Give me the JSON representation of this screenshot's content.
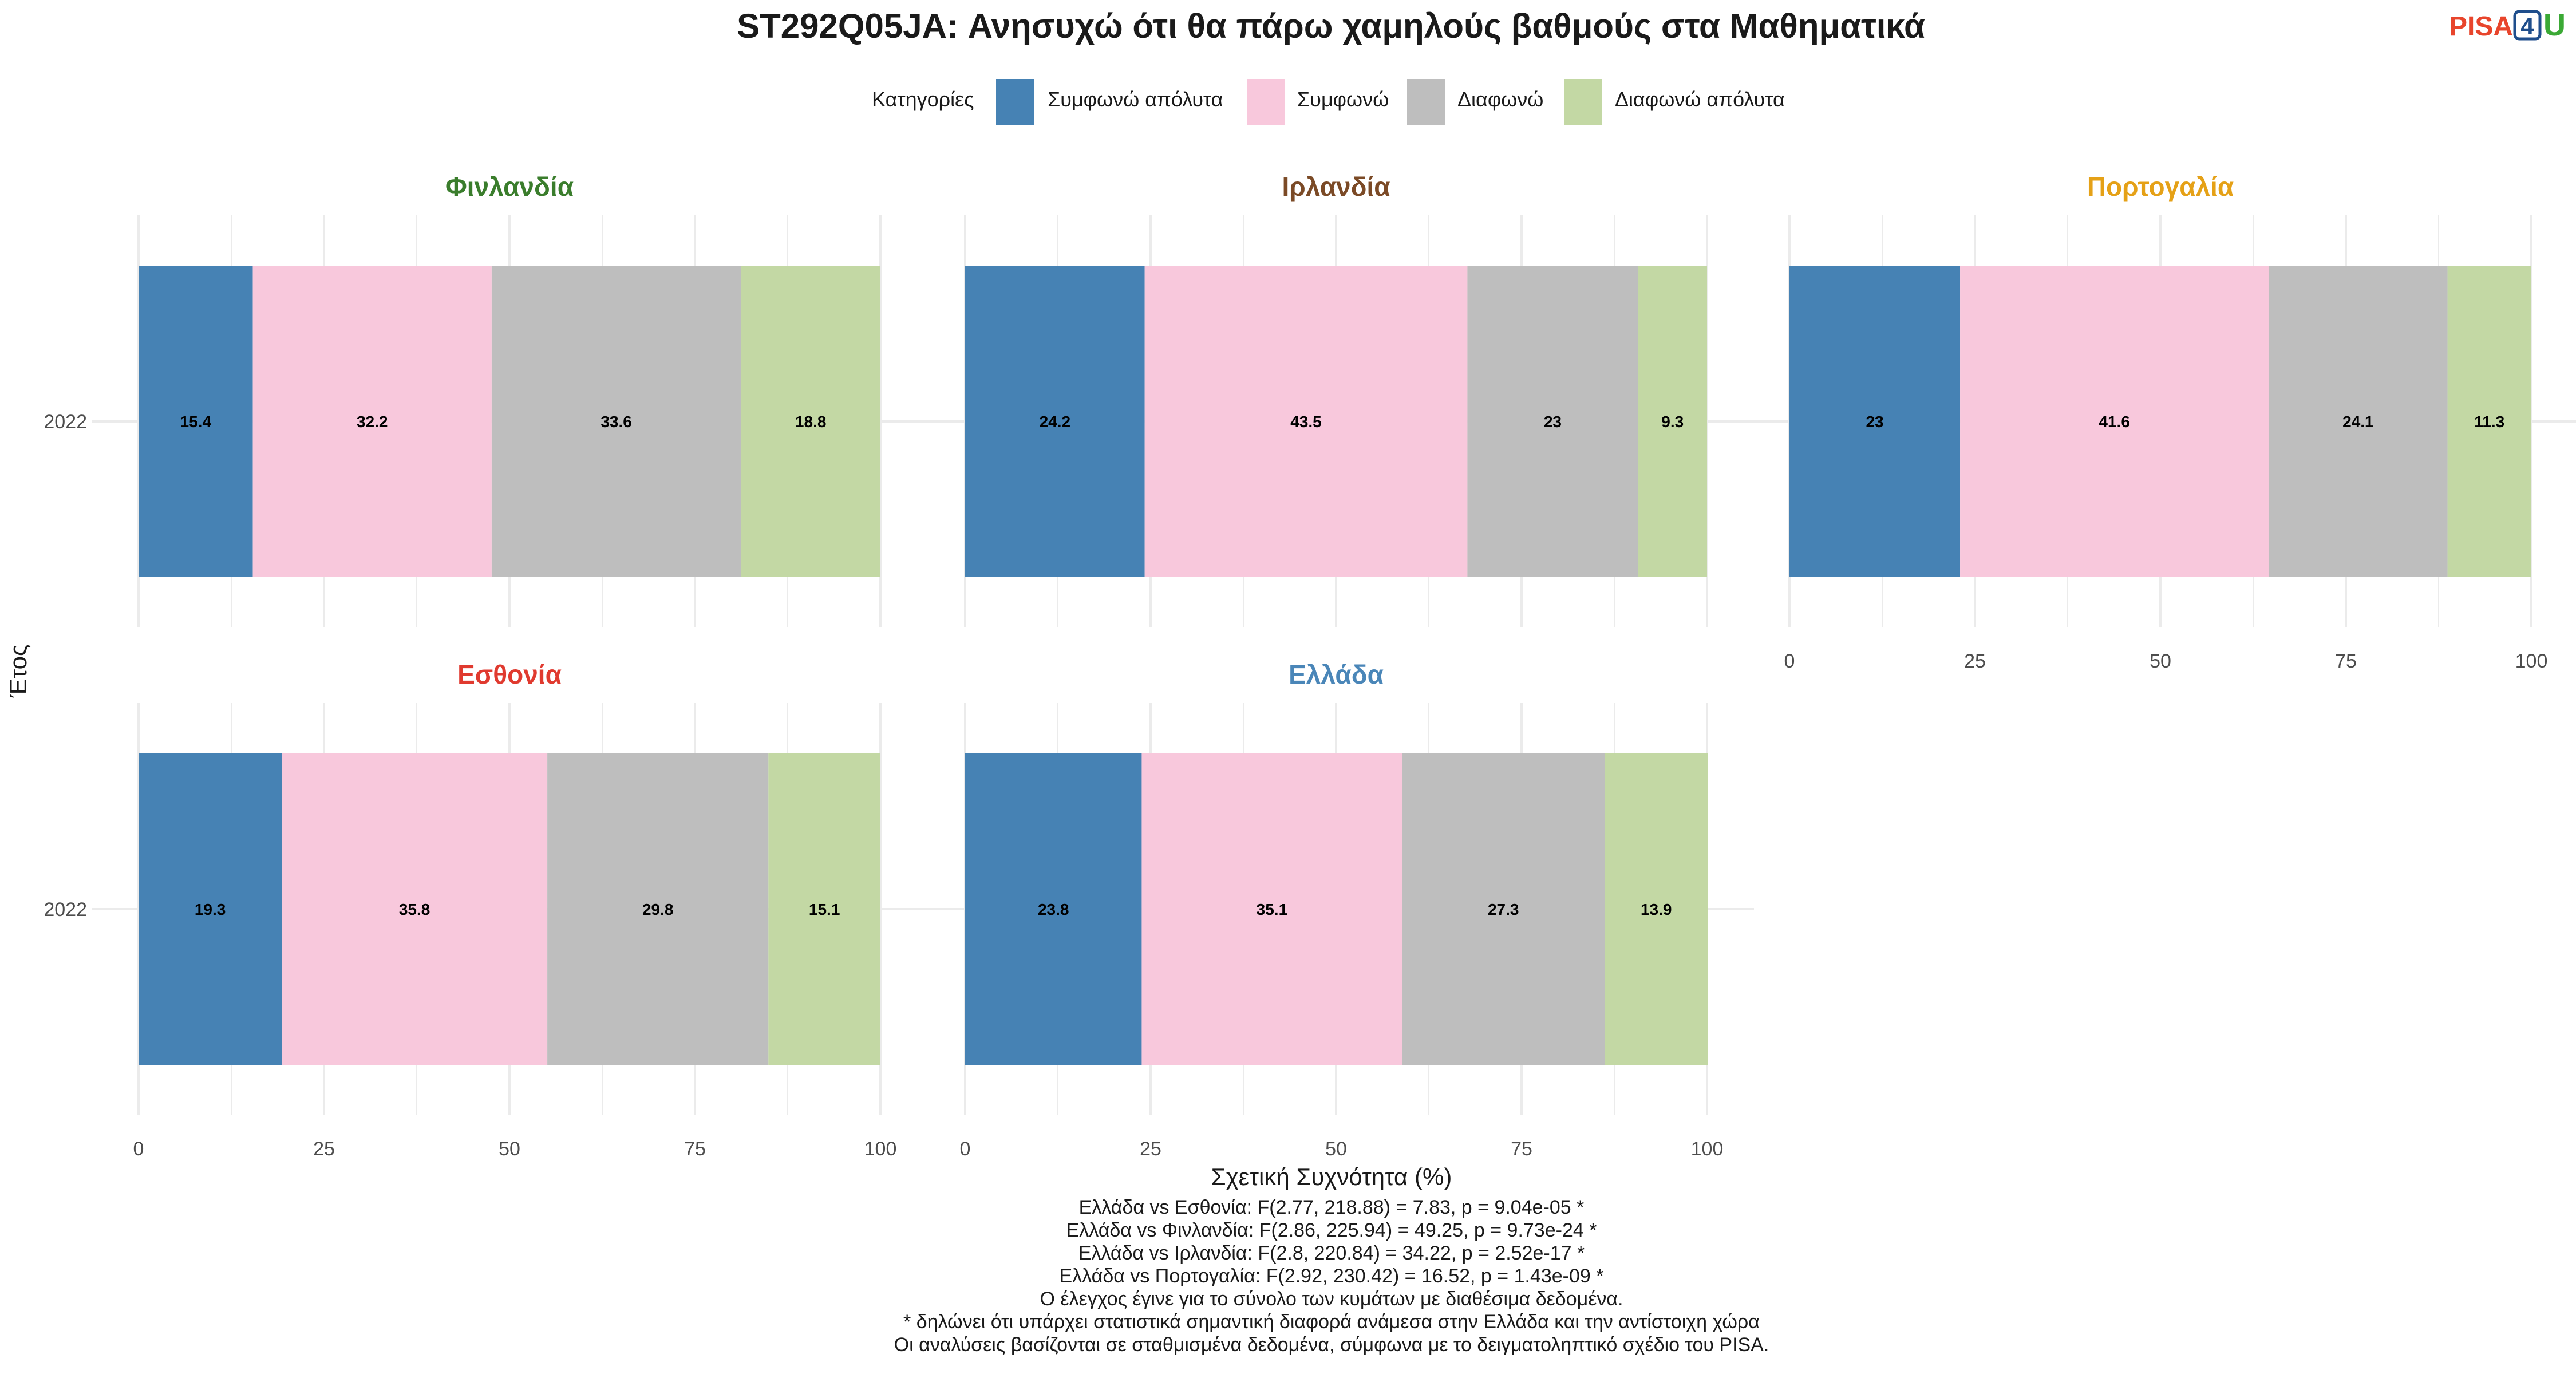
{
  "chart_data": {
    "type": "bar",
    "orientation": "horizontal",
    "stacked": true,
    "title": "ST292Q05JA: Ανησυχώ ότι θα πάρω χαμηλούς βαθμούς στα Μαθηματικά",
    "xlabel": "Σχετική Συχνότητα (%)",
    "ylabel": "Έτος",
    "xlim": [
      0,
      100
    ],
    "x_ticks": [
      "0",
      "25",
      "50",
      "75",
      "100"
    ],
    "legend": {
      "title": "Κατηγορίες",
      "placement": "top",
      "items": [
        {
          "name": "Συμφωνώ απόλυτα",
          "color": "#4682B4"
        },
        {
          "name": "Συμφωνώ",
          "color": "#F8C8DC"
        },
        {
          "name": "Διαφωνώ",
          "color": "#BEBEBE"
        },
        {
          "name": "Διαφωνώ απόλυτα",
          "color": "#C3D8A4"
        }
      ]
    },
    "panels": [
      {
        "name": "Φινλανδία",
        "color": "#3A7D2C",
        "year": "2022",
        "values": [
          15.4,
          32.2,
          33.6,
          18.8
        ]
      },
      {
        "name": "Ιρλανδία",
        "color": "#7B4A26",
        "year": "2022",
        "values": [
          24.2,
          43.5,
          23,
          9.3
        ]
      },
      {
        "name": "Πορτογαλία",
        "color": "#E5A117",
        "year": "2022",
        "values": [
          23,
          41.6,
          24.1,
          11.3
        ]
      },
      {
        "name": "Εσθονία",
        "color": "#E03A2F",
        "year": "2022",
        "values": [
          19.3,
          35.8,
          29.8,
          15.1
        ]
      },
      {
        "name": "Ελλάδα",
        "color": "#4A86B8",
        "year": "2022",
        "values": [
          23.8,
          35.1,
          27.3,
          13.9
        ]
      }
    ],
    "grid": true
  },
  "notes": [
    "Ελλάδα vs Εσθονία: F(2.77, 218.88) = 7.83, p = 9.04e-05 *",
    "Ελλάδα vs Φινλανδία: F(2.86, 225.94) = 49.25, p = 9.73e-24 *",
    "Ελλάδα vs Ιρλανδία: F(2.8, 220.84) = 34.22, p = 2.52e-17 *",
    "Ελλάδα vs Πορτογαλία: F(2.92, 230.42) = 16.52, p = 1.43e-09 *",
    "Ο έλεγχος έγινε για το σύνολο των κυμάτων με διαθέσιμα δεδομένα.",
    "* δηλώνει ότι υπάρχει στατιστικά σημαντική διαφορά ανάμεσα στην Ελλάδα και την αντίστοιχη χώρα",
    "Οι αναλύσεις βασίζονται σε σταθμισμένα δεδομένα, σύμφωνα με το δειγματοληπτικό σχέδιο του PISA."
  ],
  "logo": {
    "part1": "PISA",
    "part2": "4",
    "part3": "U",
    "color1": "#E8452C",
    "color2": "#1F4E8C",
    "color3": "#3BA935"
  }
}
